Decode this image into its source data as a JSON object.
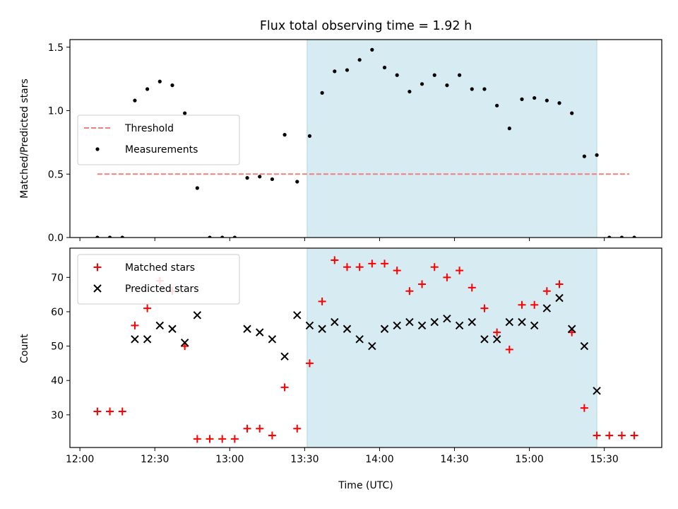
{
  "figure": {
    "title": "Flux total observing time = 1.92 h",
    "xlabel": "Time (UTC)",
    "xticks": [
      "12:00",
      "12:30",
      "13:00",
      "13:30",
      "14:00",
      "14:30",
      "15:00",
      "15:30"
    ],
    "highlight_color": "#add8e6"
  },
  "chart_data": [
    {
      "type": "scatter",
      "ylabel": "Matched/Predicted stars",
      "ylim": [
        0,
        1.56
      ],
      "yticks": [
        0.0,
        0.5,
        1.0,
        1.5
      ],
      "xlim": [
        "11:56",
        "15:53"
      ],
      "highlight": {
        "x": [
          "13:31",
          "15:27"
        ]
      },
      "legend": {
        "placement": "center-left"
      },
      "series": [
        {
          "name": "Threshold",
          "kind": "dashed-line",
          "color": "#f08080",
          "x": [
            "12:07",
            "15:40"
          ],
          "y": [
            0.5,
            0.5
          ]
        },
        {
          "name": "Measurements",
          "kind": "dots",
          "color": "#000000",
          "x": [
            "12:07",
            "12:12",
            "12:17",
            "12:22",
            "12:27",
            "12:32",
            "12:37",
            "12:42",
            "12:47",
            "12:52",
            "12:57",
            "13:02",
            "13:07",
            "13:12",
            "13:17",
            "13:22",
            "13:27",
            "13:32",
            "13:37",
            "13:42",
            "13:47",
            "13:52",
            "13:57",
            "14:02",
            "14:07",
            "14:12",
            "14:17",
            "14:22",
            "14:27",
            "14:32",
            "14:37",
            "14:42",
            "14:47",
            "14:52",
            "14:57",
            "15:02",
            "15:07",
            "15:12",
            "15:17",
            "15:22",
            "15:27",
            "15:32",
            "15:37",
            "15:42"
          ],
          "y": [
            0.0,
            0.0,
            0.0,
            1.08,
            1.17,
            1.23,
            1.2,
            0.98,
            0.39,
            0.0,
            0.0,
            0.0,
            0.47,
            0.48,
            0.46,
            0.81,
            0.44,
            0.8,
            1.14,
            1.31,
            1.32,
            1.4,
            1.48,
            1.34,
            1.28,
            1.15,
            1.21,
            1.28,
            1.2,
            1.28,
            1.17,
            1.17,
            1.04,
            0.86,
            1.09,
            1.1,
            1.08,
            1.06,
            0.98,
            0.64,
            0.65,
            0.0,
            0.0,
            0.0
          ]
        }
      ]
    },
    {
      "type": "scatter",
      "ylabel": "Count",
      "ylim": [
        20.5,
        78.5
      ],
      "yticks": [
        30,
        40,
        50,
        60,
        70
      ],
      "xlim": [
        "11:56",
        "15:53"
      ],
      "highlight": {
        "x": [
          "13:31",
          "15:27"
        ]
      },
      "legend": {
        "placement": "upper-left"
      },
      "series": [
        {
          "name": "Matched stars",
          "kind": "plus",
          "color": "#ff0000",
          "x": [
            "12:07",
            "12:12",
            "12:17",
            "12:22",
            "12:27",
            "12:32",
            "12:37",
            "12:42",
            "12:47",
            "12:52",
            "12:57",
            "13:02",
            "13:07",
            "13:12",
            "13:17",
            "13:22",
            "13:27",
            "13:32",
            "13:37",
            "13:42",
            "13:47",
            "13:52",
            "13:57",
            "14:02",
            "14:07",
            "14:12",
            "14:17",
            "14:22",
            "14:27",
            "14:32",
            "14:37",
            "14:42",
            "14:47",
            "14:52",
            "14:57",
            "15:02",
            "15:07",
            "15:12",
            "15:17",
            "15:22",
            "15:27",
            "15:32",
            "15:37",
            "15:42"
          ],
          "y": [
            31,
            31,
            31,
            56,
            61,
            69,
            66,
            50,
            23,
            23,
            23,
            23,
            26,
            26,
            24,
            38,
            26,
            45,
            63,
            75,
            73,
            73,
            74,
            74,
            72,
            66,
            68,
            73,
            70,
            72,
            67,
            61,
            54,
            49,
            62,
            62,
            66,
            68,
            54,
            32,
            24,
            24,
            24,
            24
          ]
        },
        {
          "name": "Predicted stars",
          "kind": "x",
          "color": "#000000",
          "x": [
            "12:22",
            "12:27",
            "12:32",
            "12:37",
            "12:42",
            "12:47",
            "13:07",
            "13:12",
            "13:17",
            "13:22",
            "13:27",
            "13:32",
            "13:37",
            "13:42",
            "13:47",
            "13:52",
            "13:57",
            "14:02",
            "14:07",
            "14:12",
            "14:17",
            "14:22",
            "14:27",
            "14:32",
            "14:37",
            "14:42",
            "14:47",
            "14:52",
            "14:57",
            "15:02",
            "15:07",
            "15:12",
            "15:17",
            "15:22",
            "15:27"
          ],
          "y": [
            52,
            52,
            56,
            55,
            51,
            59,
            55,
            54,
            52,
            47,
            59,
            56,
            55,
            57,
            55,
            52,
            50,
            55,
            56,
            57,
            56,
            57,
            58,
            56,
            57,
            52,
            52,
            57,
            57,
            56,
            61,
            64,
            55,
            50,
            37
          ]
        }
      ]
    }
  ]
}
